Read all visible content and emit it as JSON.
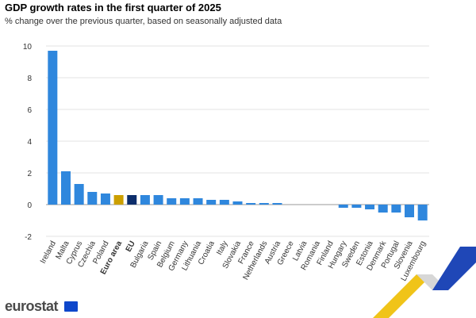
{
  "header": {
    "title": "GDP growth rates in the first quarter of 2025",
    "subtitle": "% change over the previous quarter, based on seasonally adjusted data"
  },
  "logo": {
    "text": "eurostat",
    "flag_icon": "eu-flag-icon"
  },
  "colors": {
    "bar": "#2f87dd",
    "euro_area": "#cc9f00",
    "eu": "#0c2d6b",
    "grid": "#e3e3e3",
    "zero_line": "#9a9a9a",
    "brand_blue": "#1f47b7",
    "brand_yellow": "#f0c419"
  },
  "chart_data": {
    "type": "bar",
    "title": "GDP growth rates in the first quarter of 2025",
    "subtitle": "% change over the previous quarter, based on seasonally adjusted data",
    "xlabel": "",
    "ylabel": "",
    "ylim": [
      -2,
      10
    ],
    "yticks": [
      -2,
      0,
      2,
      4,
      6,
      8,
      10
    ],
    "grid": true,
    "legend": "none",
    "categories": [
      "Ireland",
      "Malta",
      "Cyprus",
      "Czechia",
      "Poland",
      "Euro area",
      "EU",
      "Bulgaria",
      "Spain",
      "Belgium",
      "Germany",
      "Lithuania",
      "Croatia",
      "Italy",
      "Slovakia",
      "France",
      "Netherlands",
      "Austria",
      "Greece",
      "Latvia",
      "Romania",
      "Finland",
      "Hungary",
      "Sweden",
      "Estonia",
      "Denmark",
      "Portugal",
      "Slovenia",
      "Luxembourg"
    ],
    "bold_categories": [
      "Euro area",
      "EU"
    ],
    "values": [
      9.7,
      2.1,
      1.3,
      0.8,
      0.7,
      0.6,
      0.6,
      0.6,
      0.6,
      0.4,
      0.4,
      0.4,
      0.3,
      0.3,
      0.2,
      0.1,
      0.1,
      0.1,
      0.0,
      0.0,
      0.0,
      0.0,
      -0.2,
      -0.2,
      -0.3,
      -0.5,
      -0.5,
      -0.8,
      -1.0
    ]
  }
}
